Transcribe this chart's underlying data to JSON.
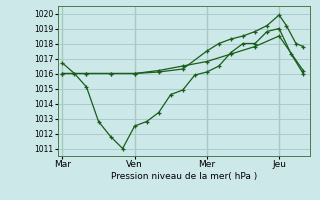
{
  "xlabel": "Pression niveau de la mer( hPa )",
  "background_color": "#cce8e8",
  "grid_color": "#aacccc",
  "line_color": "#1a5c1a",
  "vline_color": "#4a7a4a",
  "ylim": [
    1010.5,
    1020.5
  ],
  "yticks": [
    1011,
    1012,
    1013,
    1014,
    1015,
    1016,
    1017,
    1018,
    1019,
    1020
  ],
  "xtick_labels": [
    "Mar",
    "Ven",
    "Mer",
    "Jeu"
  ],
  "xtick_positions": [
    0,
    3,
    6,
    9
  ],
  "xlim": [
    -0.2,
    10.3
  ],
  "series1_x": [
    0,
    0.5,
    1,
    1.5,
    2,
    2.5,
    3,
    3.5,
    4,
    4.5,
    5,
    5.5,
    6,
    6.5,
    7,
    7.5,
    8,
    8.5,
    9,
    9.5,
    10
  ],
  "series1_y": [
    1016.7,
    1016.0,
    1015.1,
    1012.8,
    1011.8,
    1011.0,
    1012.5,
    1012.8,
    1013.4,
    1014.6,
    1014.9,
    1015.9,
    1016.1,
    1016.5,
    1017.4,
    1018.0,
    1018.0,
    1018.8,
    1019.0,
    1017.3,
    1016.0
  ],
  "series2_x": [
    0,
    1,
    2,
    3,
    4,
    5,
    6,
    7,
    8,
    9,
    10
  ],
  "series2_y": [
    1016.0,
    1016.0,
    1016.0,
    1016.0,
    1016.2,
    1016.5,
    1016.8,
    1017.3,
    1017.8,
    1018.5,
    1016.2
  ],
  "series3_x": [
    0,
    1,
    2,
    3,
    4,
    5,
    6,
    6.5,
    7,
    7.5,
    8,
    8.5,
    9,
    9.3,
    9.7,
    10
  ],
  "series3_y": [
    1016.0,
    1016.0,
    1016.0,
    1016.0,
    1016.1,
    1016.3,
    1017.5,
    1018.0,
    1018.3,
    1018.5,
    1018.8,
    1019.2,
    1019.9,
    1019.2,
    1018.0,
    1017.8
  ]
}
